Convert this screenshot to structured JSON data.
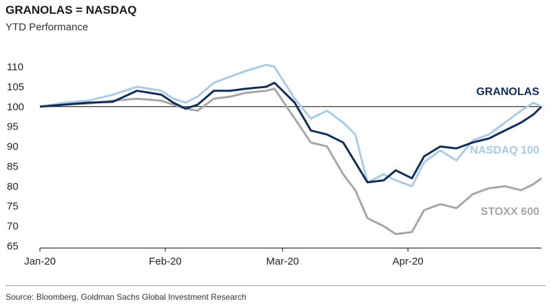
{
  "chart_data": {
    "type": "line",
    "title": "GRANOLAS = NASDAQ",
    "subtitle": "YTD Performance",
    "source": "Source: Bloomberg, Goldman Sachs Global Investment Research",
    "x_tick_labels": [
      {
        "label": "Jan-20",
        "date": "2020-01-01"
      },
      {
        "label": "Feb-20",
        "date": "2020-02-01"
      },
      {
        "label": "Mar-20",
        "date": "2020-03-01"
      },
      {
        "label": "Apr-20",
        "date": "2020-04-01"
      }
    ],
    "x_range": [
      "2020-01-01",
      "2020-05-04"
    ],
    "ylim": [
      65,
      110
    ],
    "y_ticks": [
      65,
      70,
      75,
      80,
      85,
      90,
      95,
      100,
      105,
      110
    ],
    "reference_line": 100,
    "series": [
      {
        "name": "GRANOLAS",
        "color": "#0f2d5a",
        "points": [
          [
            "2020-01-01",
            100
          ],
          [
            "2020-01-07",
            100.5
          ],
          [
            "2020-01-13",
            101
          ],
          [
            "2020-01-19",
            101.2
          ],
          [
            "2020-01-25",
            104
          ],
          [
            "2020-01-31",
            103
          ],
          [
            "2020-02-03",
            101
          ],
          [
            "2020-02-06",
            99.5
          ],
          [
            "2020-02-09",
            100.5
          ],
          [
            "2020-02-13",
            104
          ],
          [
            "2020-02-17",
            104
          ],
          [
            "2020-02-21",
            104.5
          ],
          [
            "2020-02-26",
            105
          ],
          [
            "2020-02-28",
            106
          ],
          [
            "2020-03-04",
            101
          ],
          [
            "2020-03-08",
            94
          ],
          [
            "2020-03-12",
            93
          ],
          [
            "2020-03-16",
            91
          ],
          [
            "2020-03-19",
            86
          ],
          [
            "2020-03-22",
            81
          ],
          [
            "2020-03-26",
            81.5
          ],
          [
            "2020-03-29",
            84
          ],
          [
            "2020-04-02",
            82
          ],
          [
            "2020-04-05",
            87.5
          ],
          [
            "2020-04-09",
            90
          ],
          [
            "2020-04-13",
            89.5
          ],
          [
            "2020-04-17",
            91
          ],
          [
            "2020-04-21",
            92
          ],
          [
            "2020-04-25",
            94
          ],
          [
            "2020-04-29",
            96
          ],
          [
            "2020-05-02",
            98
          ],
          [
            "2020-05-04",
            100
          ]
        ]
      },
      {
        "name": "NASDAQ 100",
        "color": "#a9cbe6",
        "points": [
          [
            "2020-01-01",
            100
          ],
          [
            "2020-01-07",
            101
          ],
          [
            "2020-01-13",
            101.5
          ],
          [
            "2020-01-19",
            103
          ],
          [
            "2020-01-25",
            105
          ],
          [
            "2020-01-31",
            104
          ],
          [
            "2020-02-03",
            102
          ],
          [
            "2020-02-06",
            101
          ],
          [
            "2020-02-09",
            102.5
          ],
          [
            "2020-02-13",
            106
          ],
          [
            "2020-02-17",
            107.5
          ],
          [
            "2020-02-21",
            109
          ],
          [
            "2020-02-26",
            110.5
          ],
          [
            "2020-02-28",
            110
          ],
          [
            "2020-03-04",
            102
          ],
          [
            "2020-03-08",
            97
          ],
          [
            "2020-03-12",
            99
          ],
          [
            "2020-03-16",
            96
          ],
          [
            "2020-03-19",
            93
          ],
          [
            "2020-03-22",
            81
          ],
          [
            "2020-03-26",
            83
          ],
          [
            "2020-03-29",
            81.5
          ],
          [
            "2020-04-02",
            80
          ],
          [
            "2020-04-05",
            86
          ],
          [
            "2020-04-09",
            89
          ],
          [
            "2020-04-13",
            86.5
          ],
          [
            "2020-04-17",
            91.5
          ],
          [
            "2020-04-21",
            93
          ],
          [
            "2020-04-25",
            96
          ],
          [
            "2020-04-29",
            99
          ],
          [
            "2020-05-02",
            101
          ],
          [
            "2020-05-04",
            100
          ]
        ]
      },
      {
        "name": "STOXX 600",
        "color": "#a6a6a6",
        "points": [
          [
            "2020-01-01",
            100
          ],
          [
            "2020-01-07",
            100.5
          ],
          [
            "2020-01-13",
            100.8
          ],
          [
            "2020-01-19",
            101.5
          ],
          [
            "2020-01-25",
            102
          ],
          [
            "2020-01-31",
            101.5
          ],
          [
            "2020-02-03",
            100.5
          ],
          [
            "2020-02-06",
            99.5
          ],
          [
            "2020-02-09",
            99
          ],
          [
            "2020-02-13",
            102
          ],
          [
            "2020-02-17",
            102.5
          ],
          [
            "2020-02-21",
            103.5
          ],
          [
            "2020-02-26",
            104
          ],
          [
            "2020-02-28",
            104.5
          ],
          [
            "2020-03-04",
            97
          ],
          [
            "2020-03-08",
            91
          ],
          [
            "2020-03-12",
            90
          ],
          [
            "2020-03-16",
            83
          ],
          [
            "2020-03-19",
            79
          ],
          [
            "2020-03-22",
            72
          ],
          [
            "2020-03-26",
            70
          ],
          [
            "2020-03-29",
            68
          ],
          [
            "2020-04-02",
            68.5
          ],
          [
            "2020-04-05",
            74
          ],
          [
            "2020-04-09",
            75.5
          ],
          [
            "2020-04-13",
            74.5
          ],
          [
            "2020-04-17",
            78
          ],
          [
            "2020-04-21",
            79.5
          ],
          [
            "2020-04-25",
            80
          ],
          [
            "2020-04-29",
            79
          ],
          [
            "2020-05-02",
            80.5
          ],
          [
            "2020-05-04",
            82
          ]
        ]
      }
    ],
    "legend": [
      {
        "text": "GRANOLAS",
        "color": "#0f2d5a"
      },
      {
        "text": "NASDAQ 100",
        "color": "#a9cbe6"
      },
      {
        "text": "STOXX 600",
        "color": "#a6a6a6"
      }
    ]
  }
}
